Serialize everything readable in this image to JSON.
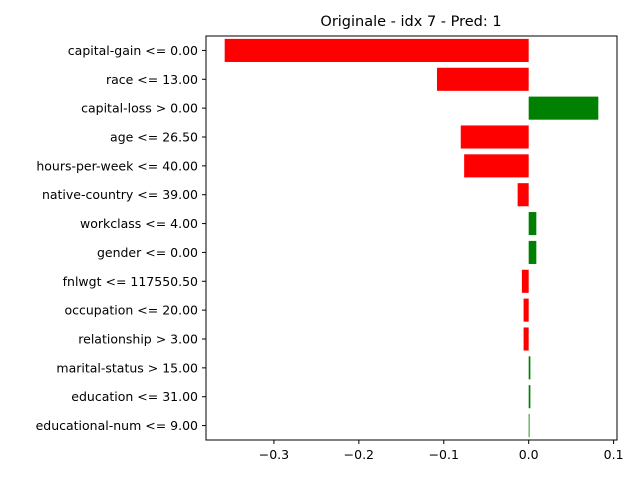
{
  "chart_data": {
    "type": "bar",
    "orientation": "horizontal",
    "title": "Originale - idx 7 - Pred: 1",
    "xlabel": "",
    "ylabel": "",
    "xlim": [
      -0.38,
      0.104
    ],
    "xticks": [
      -0.3,
      -0.2,
      -0.1,
      0.0,
      0.1
    ],
    "xtick_labels": [
      "−0.3",
      "−0.2",
      "−0.1",
      "0.0",
      "0.1"
    ],
    "grid": false,
    "legend": "none",
    "categories": [
      "capital-gain <= 0.00",
      "race <= 13.00",
      "capital-loss > 0.00",
      "age <= 26.50",
      "hours-per-week <= 40.00",
      "native-country <= 39.00",
      "workclass <= 4.00",
      "gender <= 0.00",
      "fnlwgt <= 117550.50",
      "occupation <= 20.00",
      "relationship > 3.00",
      "marital-status > 15.00",
      "education <= 31.00",
      "educational-num <= 9.00"
    ],
    "values": [
      -0.358,
      -0.108,
      0.082,
      -0.08,
      -0.076,
      -0.013,
      0.009,
      0.009,
      -0.008,
      -0.006,
      -0.006,
      0.002,
      0.002,
      0.001
    ],
    "colors": {
      "positive": "#008000",
      "negative": "#ff0000"
    }
  }
}
